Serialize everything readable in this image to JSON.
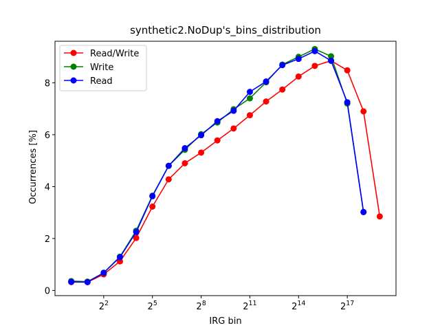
{
  "chart_data": {
    "type": "line",
    "title": "synthetic2.NoDup's_bins_distribution",
    "xlabel": "IRG bin",
    "ylabel": "Occurrences [%]",
    "x_scale": "log2",
    "x": [
      1,
      2,
      4,
      8,
      16,
      32,
      64,
      128,
      256,
      512,
      1024,
      2048,
      4096,
      8192,
      16384,
      32768,
      65536,
      131072,
      262144,
      524288
    ],
    "xticks": [
      {
        "value": 4,
        "base": "2",
        "exp": "2"
      },
      {
        "value": 32,
        "base": "2",
        "exp": "5"
      },
      {
        "value": 256,
        "base": "2",
        "exp": "8"
      },
      {
        "value": 2048,
        "base": "2",
        "exp": "11"
      },
      {
        "value": 16384,
        "base": "2",
        "exp": "14"
      },
      {
        "value": 131072,
        "base": "2",
        "exp": "17"
      }
    ],
    "ylim": [
      -0.2,
      9.6
    ],
    "yticks": [
      0,
      2,
      4,
      6,
      8
    ],
    "legend_position": "upper-left",
    "grid": false,
    "series": [
      {
        "name": "Read/Write",
        "color": "#ff0000",
        "values": [
          0.32,
          0.32,
          0.62,
          1.12,
          2.02,
          3.23,
          4.28,
          4.9,
          5.31,
          5.78,
          6.24,
          6.75,
          7.28,
          7.74,
          8.24,
          8.65,
          8.85,
          8.48,
          6.9,
          2.85
        ]
      },
      {
        "name": "Write",
        "color": "#008000",
        "values": [
          0.36,
          0.34,
          0.68,
          1.3,
          2.3,
          3.65,
          4.8,
          5.42,
          6.02,
          6.47,
          6.98,
          7.4,
          8.02,
          8.7,
          9.0,
          9.3,
          9.02,
          7.2,
          3.02,
          null
        ]
      },
      {
        "name": "Read",
        "color": "#0000ff",
        "values": [
          0.33,
          0.32,
          0.68,
          1.28,
          2.25,
          3.63,
          4.8,
          5.48,
          5.98,
          6.52,
          6.92,
          7.65,
          8.05,
          8.68,
          8.92,
          9.22,
          8.85,
          7.25,
          3.02,
          null
        ]
      }
    ]
  }
}
